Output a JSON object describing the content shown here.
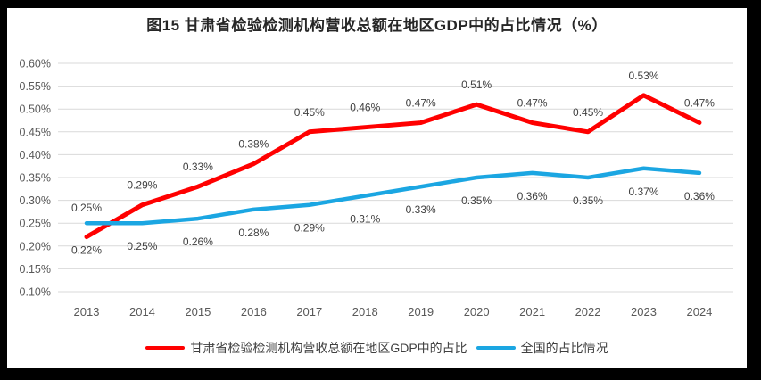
{
  "chart_data": {
    "type": "line",
    "title": "图15 甘肃省检验检测机构营收总额在地区GDP中的占比情况（%）",
    "categories": [
      "2013",
      "2014",
      "2015",
      "2016",
      "2017",
      "2018",
      "2019",
      "2020",
      "2021",
      "2022",
      "2023",
      "2024"
    ],
    "unit": "percent",
    "ylim": [
      0.1,
      0.6
    ],
    "ytick_step": 0.05,
    "ytick_labels": [
      "0.10%",
      "0.15%",
      "0.20%",
      "0.25%",
      "0.30%",
      "0.35%",
      "0.40%",
      "0.45%",
      "0.50%",
      "0.55%",
      "0.60%"
    ],
    "grid": true,
    "legend_position": "bottom",
    "data_labels": true,
    "series": [
      {
        "name": "甘肃省检验检测机构营收总额在地区GDP中的占比",
        "slug": "gansu",
        "color": "#FF0000",
        "values": [
          0.22,
          0.29,
          0.33,
          0.38,
          0.45,
          0.46,
          0.47,
          0.51,
          0.47,
          0.45,
          0.53,
          0.47
        ],
        "point_labels": [
          "0.22%",
          "0.29%",
          "0.33%",
          "0.38%",
          "0.45%",
          "0.46%",
          "0.47%",
          "0.51%",
          "0.47%",
          "0.45%",
          "0.53%",
          "0.47%"
        ],
        "label_sides": [
          "below",
          "above",
          "above",
          "above",
          "above",
          "above",
          "above",
          "above",
          "above",
          "above",
          "above",
          "above"
        ]
      },
      {
        "name": "全国的占比情况",
        "slug": "national",
        "color": "#1BA6E2",
        "values": [
          0.25,
          0.25,
          0.26,
          0.28,
          0.29,
          0.31,
          0.33,
          0.35,
          0.36,
          0.35,
          0.37,
          0.36
        ],
        "point_labels": [
          "0.25%",
          "0.25%",
          "0.26%",
          "0.28%",
          "0.29%",
          "0.31%",
          "0.33%",
          "0.35%",
          "0.36%",
          "0.35%",
          "0.37%",
          "0.36%"
        ],
        "label_sides": [
          "above",
          "below",
          "below",
          "below",
          "below",
          "below",
          "below",
          "below",
          "below",
          "below",
          "below",
          "below"
        ]
      }
    ]
  },
  "colors": {
    "frame": "#000000",
    "background": "#FFFFFF",
    "gridline": "#D9D9D9",
    "axis_text": "#595959",
    "data_label_text": "#404040",
    "title_text": "#262626",
    "series_gansu": "#FF0000",
    "series_national": "#1BA6E2"
  }
}
